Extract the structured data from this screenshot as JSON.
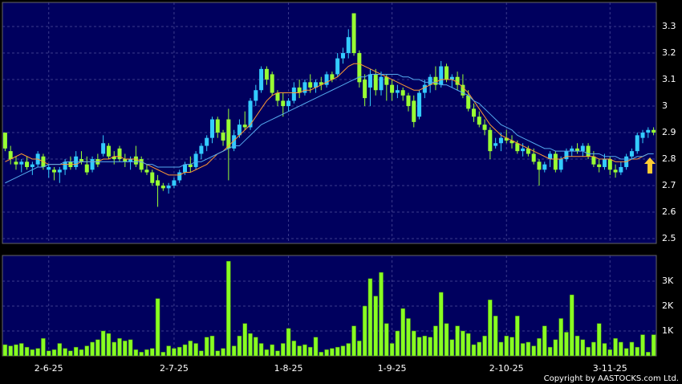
{
  "chart_data": [
    {
      "type": "candlestick",
      "up_color": "#33ccff",
      "down_color": "#99ff33",
      "open": [
        2.9,
        2.83,
        2.79,
        2.78,
        2.79,
        2.77,
        2.78,
        2.81,
        2.76,
        2.76,
        2.75,
        2.76,
        2.79,
        2.77,
        2.8,
        2.78,
        2.76,
        2.8,
        2.82,
        2.85,
        2.81,
        2.84,
        2.8,
        2.79,
        2.81,
        2.8,
        2.76,
        2.75,
        2.72,
        2.7,
        2.69,
        2.7,
        2.72,
        2.75,
        2.78,
        2.77,
        2.82,
        2.85,
        2.88,
        2.95,
        2.9,
        2.95,
        2.84,
        2.89,
        2.93,
        2.92,
        3.02,
        3.06,
        3.14,
        3.12,
        3.05,
        3.02,
        3.0,
        3.02,
        3.07,
        3.05,
        3.09,
        3.07,
        3.09,
        3.08,
        3.12,
        3.12,
        3.18,
        3.2,
        3.35,
        3.2,
        3.1,
        3.07,
        3.12,
        3.06,
        3.11,
        3.08,
        3.05,
        3.06,
        3.04,
        3.02,
        2.96,
        3.05,
        3.08,
        3.11,
        3.08,
        3.15,
        3.1,
        3.11,
        3.08,
        3.04,
        2.99,
        2.96,
        2.93,
        2.91,
        2.85,
        2.86,
        2.88,
        2.87,
        2.86,
        2.83,
        2.84,
        2.82,
        2.79,
        2.76,
        2.8,
        2.82,
        2.76,
        2.8,
        2.83,
        2.84,
        2.83,
        2.85,
        2.81,
        2.78,
        2.77,
        2.8,
        2.76,
        2.75,
        2.77,
        2.81,
        2.83,
        2.88,
        2.9,
        2.91
      ],
      "high": [
        2.9,
        2.85,
        2.81,
        2.8,
        2.81,
        2.79,
        2.83,
        2.82,
        2.78,
        2.77,
        2.77,
        2.8,
        2.81,
        2.83,
        2.83,
        2.81,
        2.81,
        2.82,
        2.89,
        2.86,
        2.83,
        2.85,
        2.82,
        2.81,
        2.85,
        2.81,
        2.78,
        2.76,
        2.74,
        2.71,
        2.71,
        2.73,
        2.76,
        2.79,
        2.81,
        2.83,
        2.86,
        2.89,
        2.96,
        2.96,
        2.91,
        2.99,
        2.91,
        2.95,
        2.98,
        3.03,
        3.08,
        3.15,
        3.15,
        3.13,
        3.06,
        3.05,
        3.03,
        3.09,
        3.1,
        3.1,
        3.12,
        3.1,
        3.11,
        3.13,
        3.13,
        3.2,
        3.22,
        3.29,
        3.35,
        3.21,
        3.12,
        3.14,
        3.14,
        3.13,
        3.12,
        3.1,
        3.08,
        3.07,
        3.05,
        3.04,
        3.06,
        3.1,
        3.12,
        3.15,
        3.17,
        3.16,
        3.12,
        3.13,
        3.12,
        3.06,
        3.01,
        2.98,
        2.95,
        2.92,
        2.88,
        2.9,
        2.91,
        2.89,
        2.87,
        2.86,
        2.85,
        2.84,
        2.8,
        2.79,
        2.83,
        2.83,
        2.81,
        2.84,
        2.85,
        2.86,
        2.86,
        2.86,
        2.83,
        2.8,
        2.82,
        2.81,
        2.78,
        2.79,
        2.82,
        2.84,
        2.9,
        2.91,
        2.92,
        2.92
      ],
      "low": [
        2.83,
        2.78,
        2.76,
        2.75,
        2.76,
        2.74,
        2.77,
        2.76,
        2.73,
        2.72,
        2.71,
        2.74,
        2.76,
        2.76,
        2.78,
        2.74,
        2.75,
        2.77,
        2.81,
        2.8,
        2.78,
        2.79,
        2.77,
        2.76,
        2.77,
        2.75,
        2.74,
        2.7,
        2.62,
        2.68,
        2.67,
        2.69,
        2.71,
        2.74,
        2.75,
        2.76,
        2.8,
        2.83,
        2.86,
        2.88,
        2.85,
        2.72,
        2.83,
        2.88,
        2.91,
        2.91,
        3.0,
        3.05,
        3.08,
        3.04,
        3.0,
        2.96,
        2.98,
        3.01,
        3.03,
        3.04,
        3.05,
        3.05,
        3.06,
        3.07,
        3.09,
        3.11,
        3.16,
        3.18,
        3.19,
        3.07,
        3.0,
        3.0,
        3.04,
        3.04,
        3.02,
        3.02,
        3.03,
        3.02,
        2.98,
        2.92,
        2.95,
        3.03,
        3.05,
        3.06,
        3.07,
        3.09,
        3.07,
        3.06,
        3.03,
        2.98,
        2.94,
        2.92,
        2.89,
        2.8,
        2.84,
        2.83,
        2.86,
        2.84,
        2.82,
        2.81,
        2.81,
        2.78,
        2.7,
        2.75,
        2.77,
        2.75,
        2.75,
        2.79,
        2.81,
        2.82,
        2.81,
        2.8,
        2.77,
        2.75,
        2.76,
        2.74,
        2.73,
        2.74,
        2.76,
        2.8,
        2.82,
        2.86,
        2.88,
        2.89
      ],
      "close": [
        2.84,
        2.8,
        2.78,
        2.79,
        2.77,
        2.78,
        2.82,
        2.77,
        2.77,
        2.75,
        2.76,
        2.79,
        2.77,
        2.81,
        2.79,
        2.75,
        2.8,
        2.78,
        2.86,
        2.81,
        2.8,
        2.8,
        2.79,
        2.8,
        2.78,
        2.76,
        2.75,
        2.71,
        2.7,
        2.69,
        2.7,
        2.72,
        2.75,
        2.78,
        2.77,
        2.82,
        2.85,
        2.88,
        2.95,
        2.9,
        2.87,
        2.84,
        2.89,
        2.93,
        2.92,
        3.02,
        3.06,
        3.14,
        3.1,
        3.05,
        3.02,
        3.0,
        3.02,
        3.07,
        3.05,
        3.09,
        3.07,
        3.09,
        3.08,
        3.12,
        3.1,
        3.18,
        3.2,
        3.26,
        3.2,
        3.09,
        3.03,
        3.12,
        3.06,
        3.11,
        3.08,
        3.05,
        3.06,
        3.04,
        3.0,
        2.94,
        3.05,
        3.08,
        3.11,
        3.08,
        3.15,
        3.1,
        3.11,
        3.08,
        3.04,
        2.99,
        2.96,
        2.93,
        2.91,
        2.83,
        2.86,
        2.88,
        2.87,
        2.86,
        2.83,
        2.84,
        2.82,
        2.79,
        2.76,
        2.78,
        2.82,
        2.76,
        2.8,
        2.83,
        2.84,
        2.83,
        2.85,
        2.81,
        2.78,
        2.77,
        2.8,
        2.76,
        2.75,
        2.77,
        2.81,
        2.83,
        2.89,
        2.9,
        2.91,
        2.9
      ],
      "series": [
        {
          "color": "#ff9933",
          "values": [
            2.79,
            2.8,
            2.81,
            2.82,
            2.81,
            2.8,
            2.8,
            2.79,
            2.78,
            2.78,
            2.78,
            2.78,
            2.78,
            2.78,
            2.79,
            2.79,
            2.79,
            2.79,
            2.8,
            2.8,
            2.81,
            2.81,
            2.8,
            2.8,
            2.8,
            2.79,
            2.78,
            2.77,
            2.76,
            2.75,
            2.74,
            2.74,
            2.74,
            2.75,
            2.75,
            2.76,
            2.77,
            2.78,
            2.8,
            2.82,
            2.83,
            2.85,
            2.87,
            2.89,
            2.91,
            2.93,
            2.96,
            2.99,
            3.02,
            3.04,
            3.05,
            3.05,
            3.05,
            3.05,
            3.05,
            3.06,
            3.06,
            3.07,
            3.08,
            3.09,
            3.1,
            3.11,
            3.13,
            3.15,
            3.16,
            3.16,
            3.15,
            3.14,
            3.13,
            3.12,
            3.11,
            3.1,
            3.09,
            3.08,
            3.07,
            3.06,
            3.06,
            3.07,
            3.08,
            3.09,
            3.1,
            3.1,
            3.1,
            3.09,
            3.07,
            3.05,
            3.02,
            2.99,
            2.96,
            2.93,
            2.91,
            2.89,
            2.88,
            2.87,
            2.86,
            2.85,
            2.84,
            2.83,
            2.82,
            2.81,
            2.8,
            2.8,
            2.8,
            2.81,
            2.81,
            2.81,
            2.81,
            2.81,
            2.81,
            2.8,
            2.8,
            2.8,
            2.79,
            2.79,
            2.79,
            2.8,
            2.8,
            2.81,
            2.82,
            2.82
          ]
        },
        {
          "color": "#55aaee",
          "values": [
            2.71,
            2.72,
            2.73,
            2.74,
            2.75,
            2.76,
            2.77,
            2.77,
            2.78,
            2.78,
            2.78,
            2.79,
            2.79,
            2.79,
            2.79,
            2.79,
            2.79,
            2.79,
            2.79,
            2.79,
            2.79,
            2.79,
            2.79,
            2.79,
            2.79,
            2.79,
            2.78,
            2.78,
            2.77,
            2.77,
            2.77,
            2.77,
            2.77,
            2.78,
            2.78,
            2.79,
            2.79,
            2.8,
            2.81,
            2.82,
            2.83,
            2.84,
            2.85,
            2.85,
            2.87,
            2.89,
            2.91,
            2.93,
            2.94,
            2.95,
            2.96,
            2.97,
            2.98,
            2.99,
            3.0,
            3.01,
            3.02,
            3.03,
            3.04,
            3.05,
            3.06,
            3.07,
            3.08,
            3.09,
            3.1,
            3.11,
            3.11,
            3.12,
            3.12,
            3.12,
            3.12,
            3.12,
            3.12,
            3.11,
            3.11,
            3.1,
            3.1,
            3.09,
            3.09,
            3.09,
            3.08,
            3.08,
            3.07,
            3.06,
            3.05,
            3.04,
            3.02,
            3.01,
            2.99,
            2.97,
            2.95,
            2.93,
            2.92,
            2.91,
            2.89,
            2.88,
            2.87,
            2.86,
            2.85,
            2.84,
            2.84,
            2.83,
            2.83,
            2.83,
            2.83,
            2.83,
            2.83,
            2.82,
            2.82,
            2.82,
            2.81,
            2.81,
            2.81,
            2.8,
            2.8,
            2.8,
            2.81,
            2.81,
            2.82,
            2.82
          ]
        }
      ],
      "ylim": [
        2.482,
        3.391
      ],
      "yticks": [
        2.5,
        2.6,
        2.7,
        2.8,
        2.9,
        3,
        3.1,
        3.2,
        3.3
      ],
      "grid": true
    },
    {
      "type": "bar",
      "color": "#88ff22",
      "categories": [
        null,
        null,
        null,
        null,
        null,
        null,
        null,
        null,
        "2-6-25",
        null,
        null,
        null,
        null,
        null,
        null,
        null,
        null,
        null,
        null,
        null,
        null,
        null,
        null,
        null,
        null,
        null,
        null,
        null,
        null,
        null,
        null,
        "2-7-25",
        null,
        null,
        null,
        null,
        null,
        null,
        null,
        null,
        null,
        null,
        null,
        null,
        null,
        null,
        null,
        null,
        null,
        null,
        null,
        null,
        "1-8-25",
        null,
        null,
        null,
        null,
        null,
        null,
        null,
        null,
        null,
        null,
        null,
        null,
        null,
        null,
        null,
        null,
        null,
        null,
        "1-9-25",
        null,
        null,
        null,
        null,
        null,
        null,
        null,
        null,
        null,
        null,
        null,
        null,
        null,
        null,
        null,
        null,
        null,
        null,
        null,
        null,
        "2-10-25",
        null,
        null,
        null,
        null,
        null,
        null,
        null,
        null,
        null,
        null,
        null,
        null,
        null,
        null,
        null,
        null,
        null,
        null,
        "3-11-25",
        null,
        null,
        null,
        null,
        null,
        null,
        null,
        null
      ],
      "values": [
        450,
        400,
        450,
        500,
        350,
        250,
        300,
        700,
        200,
        250,
        500,
        300,
        200,
        350,
        250,
        400,
        550,
        650,
        1000,
        900,
        550,
        700,
        600,
        650,
        250,
        150,
        250,
        300,
        2300,
        150,
        400,
        300,
        350,
        450,
        600,
        500,
        200,
        750,
        800,
        200,
        300,
        3800,
        400,
        800,
        1300,
        900,
        750,
        500,
        250,
        450,
        200,
        500,
        1100,
        600,
        400,
        450,
        350,
        750,
        150,
        250,
        300,
        350,
        400,
        500,
        1200,
        600,
        2000,
        3100,
        2400,
        3350,
        1300,
        500,
        1000,
        1900,
        1500,
        1000,
        750,
        800,
        750,
        1200,
        2550,
        1300,
        650,
        1200,
        1000,
        900,
        450,
        550,
        800,
        2250,
        1600,
        550,
        800,
        750,
        1600,
        500,
        550,
        400,
        700,
        1200,
        350,
        650,
        1500,
        950,
        2450,
        800,
        650,
        350,
        550,
        1300,
        500,
        250,
        700,
        550,
        300,
        550,
        350,
        850,
        150,
        850
      ],
      "ylim": [
        0,
        4030
      ],
      "yticks": [
        {
          "value": 1000,
          "label": "1K"
        },
        {
          "value": 2000,
          "label": "2K"
        },
        {
          "value": 3000,
          "label": "3K"
        }
      ],
      "grid": true
    }
  ],
  "footer": "Copyright by AASTOCKS.com Ltd."
}
